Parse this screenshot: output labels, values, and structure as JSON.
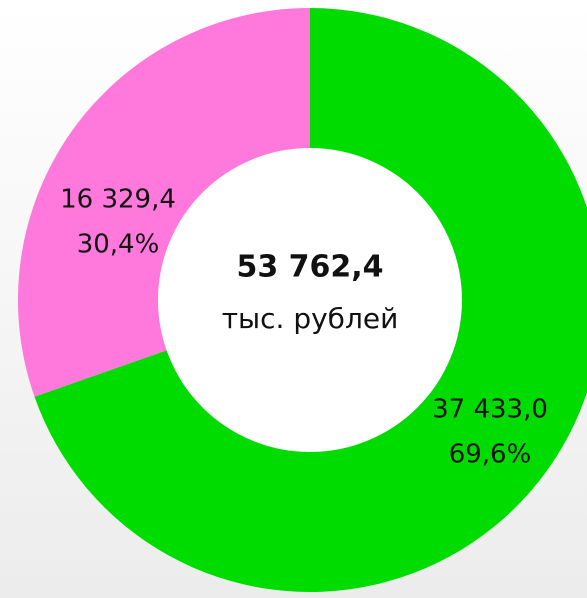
{
  "chart_data": {
    "type": "donut",
    "values": [
      37433.0,
      16329.4
    ],
    "value_labels": [
      "37 433,0",
      "16 329,4"
    ],
    "percents": [
      69.6,
      30.4
    ],
    "percent_labels": [
      "69,6%",
      "30,4%"
    ],
    "colors": [
      "#00dc00",
      "#ff78dc"
    ],
    "total": 53762.4,
    "total_label": "53 762,4",
    "unit": "тыс. рублей"
  }
}
